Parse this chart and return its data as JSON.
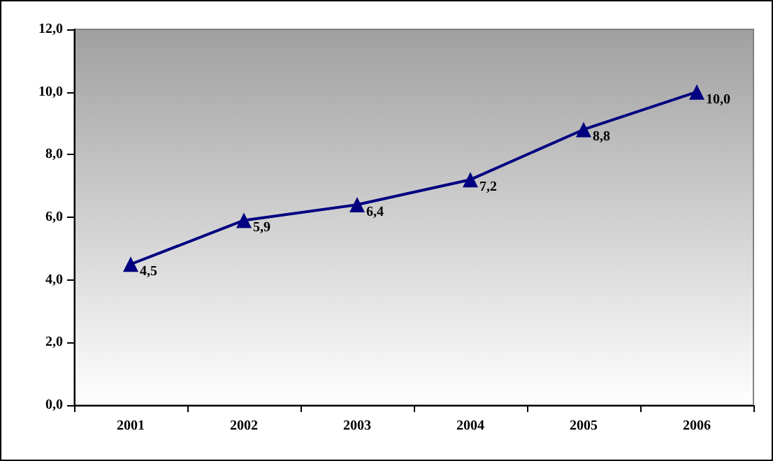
{
  "chart_data": {
    "type": "line",
    "categories": [
      "2001",
      "2002",
      "2003",
      "2004",
      "2005",
      "2006"
    ],
    "series": [
      {
        "color": "#000080",
        "values": [
          4.5,
          5.9,
          6.4,
          7.2,
          8.8,
          10.0
        ],
        "value_labels": [
          "4,5",
          "5,9",
          "6,4",
          "7,2",
          "8,8",
          "10,0"
        ]
      }
    ],
    "ylim": [
      0,
      12
    ],
    "yticks": [
      {
        "value": 0,
        "label": "0,0"
      },
      {
        "value": 2,
        "label": "2,0"
      },
      {
        "value": 4,
        "label": "4,0"
      },
      {
        "value": 6,
        "label": "6,0"
      },
      {
        "value": 8,
        "label": "8,0"
      },
      {
        "value": 10,
        "label": "10,0"
      },
      {
        "value": 12,
        "label": "12,0"
      }
    ],
    "grid": false,
    "marker": "triangle",
    "line_style": "solid"
  }
}
